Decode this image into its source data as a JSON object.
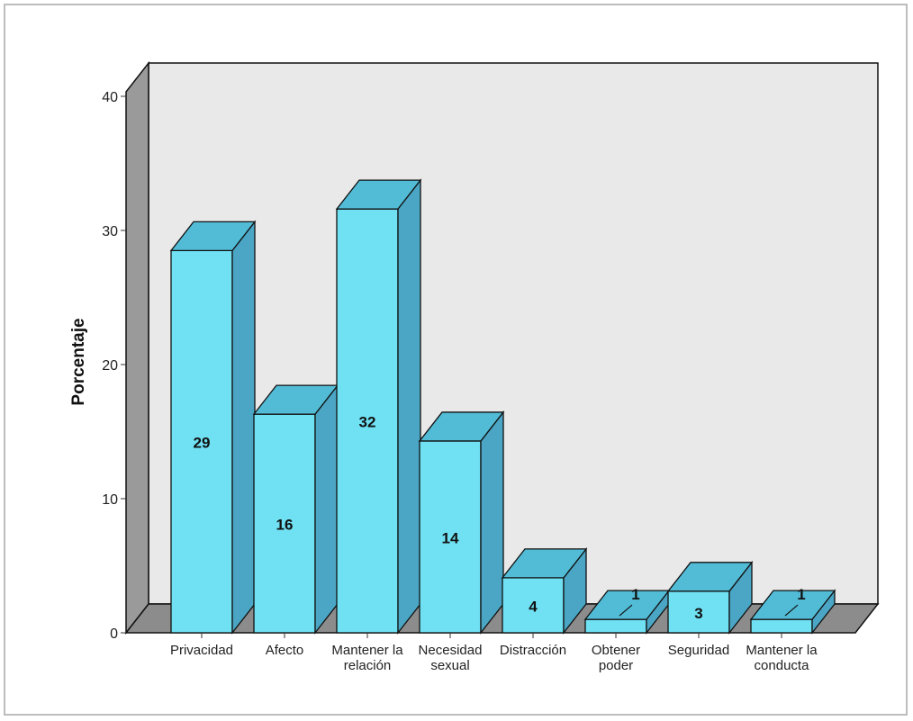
{
  "chart_data": {
    "type": "bar",
    "title": "",
    "xlabel": "",
    "ylabel": "Porcentaje",
    "ylim": [
      0,
      40
    ],
    "yticks": [
      0,
      10,
      20,
      30,
      40
    ],
    "categories": [
      [
        "Privacidad"
      ],
      [
        "Afecto"
      ],
      [
        "Mantener la",
        "relación"
      ],
      [
        "Necesidad",
        "sexual"
      ],
      [
        "Distracción"
      ],
      [
        "Obtener",
        "poder"
      ],
      [
        "Seguridad"
      ],
      [
        "Mantener la",
        "conducta"
      ]
    ],
    "values": [
      28.5,
      16.3,
      31.6,
      14.3,
      4.1,
      1.0,
      3.1,
      1.0
    ],
    "data_labels": [
      "29",
      "16",
      "32",
      "14",
      "4",
      "1",
      "3",
      "1"
    ],
    "grid": false,
    "style": "3d",
    "colors": {
      "bar_front": "#6fe1f3",
      "bar_top": "#52bcd6",
      "bar_side": "#4aa6c4",
      "back_wall": "#e9e9e9",
      "side_wall": "#9a9a9a",
      "floor": "#8c8c8c",
      "outline": "#111111"
    }
  }
}
